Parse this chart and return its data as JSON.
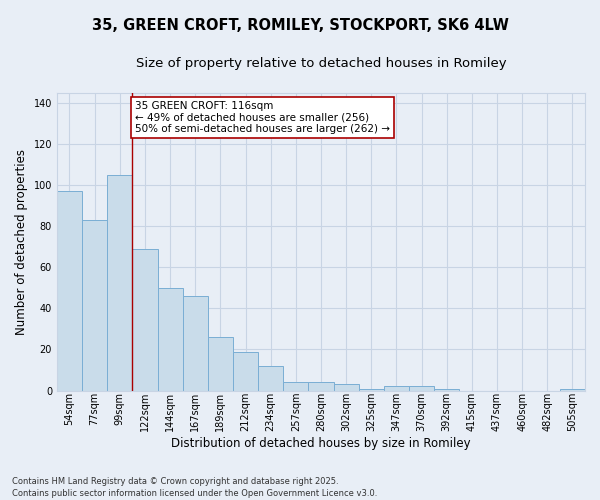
{
  "title_line1": "35, GREEN CROFT, ROMILEY, STOCKPORT, SK6 4LW",
  "title_line2": "Size of property relative to detached houses in Romiley",
  "xlabel": "Distribution of detached houses by size in Romiley",
  "ylabel": "Number of detached properties",
  "categories": [
    "54sqm",
    "77sqm",
    "99sqm",
    "122sqm",
    "144sqm",
    "167sqm",
    "189sqm",
    "212sqm",
    "234sqm",
    "257sqm",
    "280sqm",
    "302sqm",
    "325sqm",
    "347sqm",
    "370sqm",
    "392sqm",
    "415sqm",
    "437sqm",
    "460sqm",
    "482sqm",
    "505sqm"
  ],
  "values": [
    97,
    83,
    105,
    69,
    50,
    46,
    26,
    19,
    12,
    4,
    4,
    3,
    1,
    2,
    2,
    1,
    0,
    0,
    0,
    0,
    1
  ],
  "bar_color": "#c9dcea",
  "bar_edge_color": "#7aaed4",
  "grid_color": "#c8d4e4",
  "background_color": "#e8eef6",
  "vline_x_index": 2.5,
  "vline_color": "#aa0000",
  "annotation_text": "35 GREEN CROFT: 116sqm\n← 49% of detached houses are smaller (256)\n50% of semi-detached houses are larger (262) →",
  "annotation_box_color": "#ffffff",
  "annotation_box_edge": "#aa0000",
  "ylim": [
    0,
    145
  ],
  "yticks": [
    0,
    20,
    40,
    60,
    80,
    100,
    120,
    140
  ],
  "footer": "Contains HM Land Registry data © Crown copyright and database right 2025.\nContains public sector information licensed under the Open Government Licence v3.0.",
  "title_fontsize": 10.5,
  "subtitle_fontsize": 9.5,
  "axis_label_fontsize": 8.5,
  "tick_fontsize": 7,
  "annotation_fontsize": 7.5,
  "footer_fontsize": 6
}
